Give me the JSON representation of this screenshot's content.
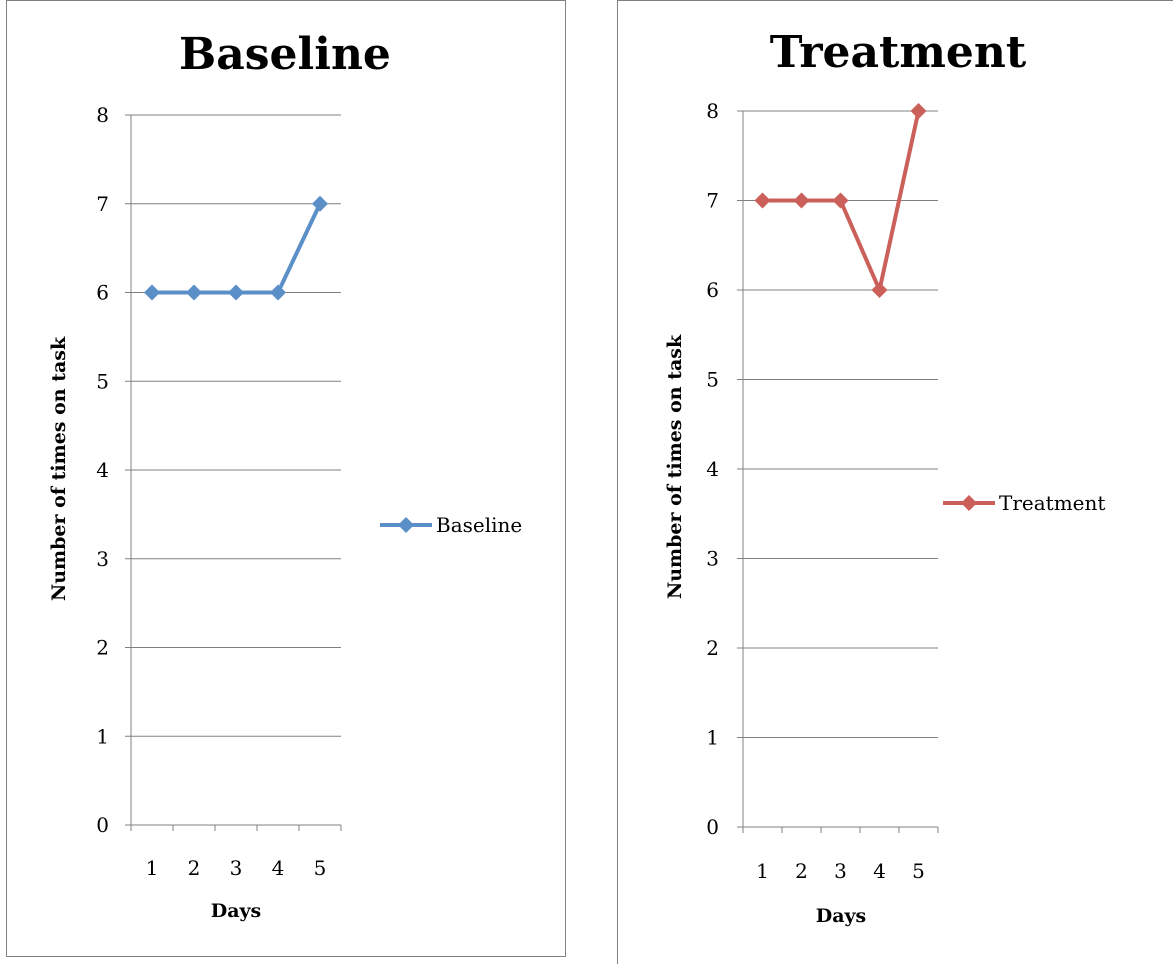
{
  "chart_data": [
    {
      "type": "line",
      "title": "Baseline",
      "xlabel": "Days",
      "ylabel": "Number of times on task",
      "categories": [
        "1",
        "2",
        "3",
        "4",
        "5"
      ],
      "yticks": [
        "0",
        "1",
        "2",
        "3",
        "4",
        "5",
        "6",
        "7",
        "8"
      ],
      "ylim": [
        0,
        8
      ],
      "grid": true,
      "legend": "right",
      "series": [
        {
          "name": "Baseline",
          "values": [
            6,
            6,
            6,
            6,
            7
          ],
          "color": "#5b8fc8",
          "marker": "diamond"
        }
      ]
    },
    {
      "type": "line",
      "title": "Treatment",
      "xlabel": "Days",
      "ylabel": "Number of times on task",
      "categories": [
        "1",
        "2",
        "3",
        "4",
        "5"
      ],
      "yticks": [
        "0",
        "1",
        "2",
        "3",
        "4",
        "5",
        "6",
        "7",
        "8"
      ],
      "ylim": [
        0,
        8
      ],
      "grid": true,
      "legend": "right",
      "series": [
        {
          "name": "Treatment",
          "values": [
            7,
            7,
            7,
            6,
            8
          ],
          "color": "#cb5f59",
          "marker": "diamond"
        }
      ]
    }
  ]
}
